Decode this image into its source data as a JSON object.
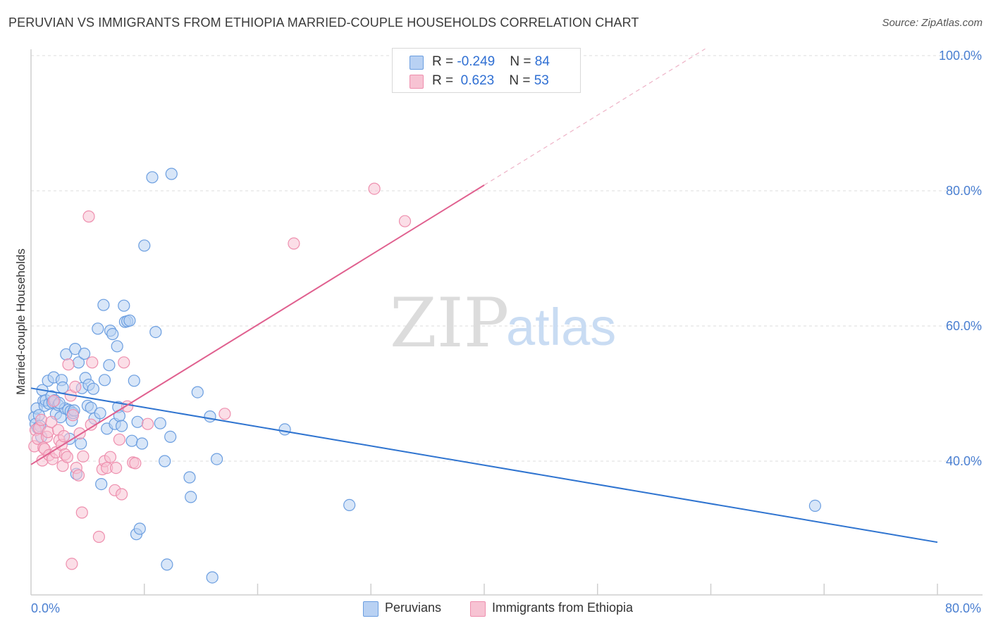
{
  "header": {
    "title": "PERUVIAN VS IMMIGRANTS FROM ETHIOPIA MARRIED-COUPLE HOUSEHOLDS CORRELATION CHART",
    "source": "Source: ZipAtlas.com"
  },
  "watermark": {
    "zip": "ZIP",
    "atlas": "atlas"
  },
  "colors": {
    "blue_fill": "#b8d1f3",
    "blue_stroke": "#6b9ee0",
    "blue_line": "#2f74d0",
    "pink_fill": "#f7c3d3",
    "pink_stroke": "#ee8fae",
    "pink_line": "#e0608f",
    "tick_label": "#4a7fd1"
  },
  "legend": {
    "rows": [
      {
        "r_label": "R = ",
        "r_value": "-0.249",
        "n_label": "N = ",
        "n_value": "84"
      },
      {
        "r_label": "R = ",
        "r_value": " 0.623",
        "n_label": "N = ",
        "n_value": "53"
      }
    ]
  },
  "chart_data": {
    "type": "scatter",
    "title": "PERUVIAN VS IMMIGRANTS FROM ETHIOPIA MARRIED-COUPLE HOUSEHOLDS CORRELATION CHART",
    "xlabel": "",
    "ylabel": "Married-couple Households",
    "xlim": [
      0,
      80
    ],
    "ylim": [
      20,
      102
    ],
    "x_tick_labels": [
      "0.0%",
      "80.0%"
    ],
    "y_ticks": [
      40,
      60,
      80,
      100
    ],
    "y_tick_labels": [
      "40.0%",
      "60.0%",
      "80.0%",
      "100.0%"
    ],
    "grid": true,
    "series": [
      {
        "name": "Peruvians",
        "color": "#6b9ee0",
        "r": -0.249,
        "n": 84,
        "trend": {
          "x0": 0,
          "y0": 50.8,
          "x1": 80,
          "y1": 28.0,
          "dashed_from": null
        },
        "points": [
          [
            0.3,
            46.5
          ],
          [
            0.4,
            45.5
          ],
          [
            0.5,
            47.8
          ],
          [
            0.6,
            44.9
          ],
          [
            0.7,
            46.8
          ],
          [
            0.8,
            45.2
          ],
          [
            0.9,
            43.6
          ],
          [
            1.0,
            50.5
          ],
          [
            1.1,
            48.9
          ],
          [
            1.2,
            48.2
          ],
          [
            1.3,
            49.0
          ],
          [
            1.5,
            51.9
          ],
          [
            1.6,
            48.5
          ],
          [
            1.8,
            49.6
          ],
          [
            1.9,
            48.7
          ],
          [
            2.0,
            52.4
          ],
          [
            2.1,
            49.0
          ],
          [
            2.2,
            47.0
          ],
          [
            2.4,
            48.3
          ],
          [
            2.6,
            46.5
          ],
          [
            2.7,
            52.0
          ],
          [
            2.8,
            50.9
          ],
          [
            3.0,
            47.8
          ],
          [
            3.1,
            55.8
          ],
          [
            3.3,
            47.6
          ],
          [
            3.4,
            43.3
          ],
          [
            3.5,
            47.4
          ],
          [
            3.6,
            46.0
          ],
          [
            3.7,
            47.1
          ],
          [
            3.9,
            56.6
          ],
          [
            4.0,
            38.1
          ],
          [
            4.2,
            54.6
          ],
          [
            4.4,
            42.6
          ],
          [
            4.5,
            50.8
          ],
          [
            4.7,
            55.9
          ],
          [
            4.8,
            52.3
          ],
          [
            5.0,
            48.2
          ],
          [
            5.1,
            51.3
          ],
          [
            5.3,
            47.9
          ],
          [
            5.5,
            50.7
          ],
          [
            5.6,
            46.3
          ],
          [
            5.9,
            59.6
          ],
          [
            6.1,
            47.1
          ],
          [
            6.2,
            36.6
          ],
          [
            6.4,
            63.1
          ],
          [
            6.5,
            52.0
          ],
          [
            6.7,
            44.8
          ],
          [
            6.9,
            54.2
          ],
          [
            7.0,
            59.3
          ],
          [
            7.2,
            58.8
          ],
          [
            7.4,
            45.5
          ],
          [
            7.6,
            57.0
          ],
          [
            7.7,
            48.0
          ],
          [
            7.8,
            46.7
          ],
          [
            8.0,
            45.2
          ],
          [
            8.2,
            63.0
          ],
          [
            8.3,
            60.6
          ],
          [
            8.5,
            60.7
          ],
          [
            8.7,
            60.8
          ],
          [
            8.9,
            43.0
          ],
          [
            9.1,
            51.9
          ],
          [
            9.3,
            29.2
          ],
          [
            9.4,
            45.8
          ],
          [
            9.6,
            30.0
          ],
          [
            9.8,
            42.6
          ],
          [
            10.0,
            71.9
          ],
          [
            10.7,
            82.0
          ],
          [
            11.0,
            59.1
          ],
          [
            11.4,
            45.6
          ],
          [
            11.8,
            40.0
          ],
          [
            12.0,
            24.7
          ],
          [
            12.3,
            43.6
          ],
          [
            12.4,
            82.5
          ],
          [
            14.0,
            37.6
          ],
          [
            14.1,
            34.7
          ],
          [
            14.7,
            50.2
          ],
          [
            16.0,
            22.8
          ],
          [
            15.8,
            46.6
          ],
          [
            16.4,
            40.3
          ],
          [
            22.4,
            44.7
          ],
          [
            28.1,
            33.5
          ],
          [
            69.2,
            33.4
          ],
          [
            2.5,
            48.6
          ],
          [
            3.8,
            47.5
          ]
        ]
      },
      {
        "name": "Immigrants from Ethiopia",
        "color": "#ee8fae",
        "r": 0.623,
        "n": 53,
        "trend": {
          "x0": 0,
          "y0": 39.5,
          "x1": 59.5,
          "y1": 101.0,
          "dashed_from": 40
        },
        "points": [
          [
            0.3,
            42.2
          ],
          [
            0.4,
            44.6
          ],
          [
            0.6,
            43.3
          ],
          [
            0.7,
            44.9
          ],
          [
            0.9,
            46.1
          ],
          [
            1.0,
            40.1
          ],
          [
            1.1,
            42.0
          ],
          [
            1.2,
            41.8
          ],
          [
            1.4,
            43.6
          ],
          [
            1.5,
            44.3
          ],
          [
            1.6,
            40.9
          ],
          [
            1.8,
            45.8
          ],
          [
            1.9,
            40.3
          ],
          [
            2.0,
            48.9
          ],
          [
            2.2,
            41.3
          ],
          [
            2.4,
            44.6
          ],
          [
            2.5,
            43.1
          ],
          [
            2.7,
            42.4
          ],
          [
            2.8,
            39.3
          ],
          [
            2.9,
            43.7
          ],
          [
            3.0,
            41.0
          ],
          [
            3.2,
            40.6
          ],
          [
            3.3,
            54.3
          ],
          [
            3.5,
            49.7
          ],
          [
            3.7,
            46.8
          ],
          [
            3.9,
            51.0
          ],
          [
            4.0,
            39.0
          ],
          [
            4.2,
            37.9
          ],
          [
            4.3,
            44.1
          ],
          [
            4.5,
            32.4
          ],
          [
            4.6,
            40.7
          ],
          [
            5.1,
            76.2
          ],
          [
            5.3,
            45.4
          ],
          [
            5.4,
            54.6
          ],
          [
            6.0,
            28.8
          ],
          [
            6.3,
            38.8
          ],
          [
            6.5,
            40.0
          ],
          [
            6.7,
            39.0
          ],
          [
            7.0,
            40.6
          ],
          [
            7.4,
            35.7
          ],
          [
            7.5,
            39.0
          ],
          [
            7.8,
            43.2
          ],
          [
            8.0,
            35.1
          ],
          [
            8.5,
            48.1
          ],
          [
            9.0,
            39.8
          ],
          [
            9.2,
            39.7
          ],
          [
            10.3,
            45.5
          ],
          [
            17.1,
            47.0
          ],
          [
            23.2,
            72.2
          ],
          [
            30.3,
            80.3
          ],
          [
            33.0,
            75.5
          ],
          [
            3.6,
            24.8
          ],
          [
            8.2,
            54.6
          ]
        ]
      }
    ]
  },
  "bottom_legend": {
    "items": [
      {
        "label": "Peruvians"
      },
      {
        "label": "Immigrants from Ethiopia"
      }
    ]
  }
}
